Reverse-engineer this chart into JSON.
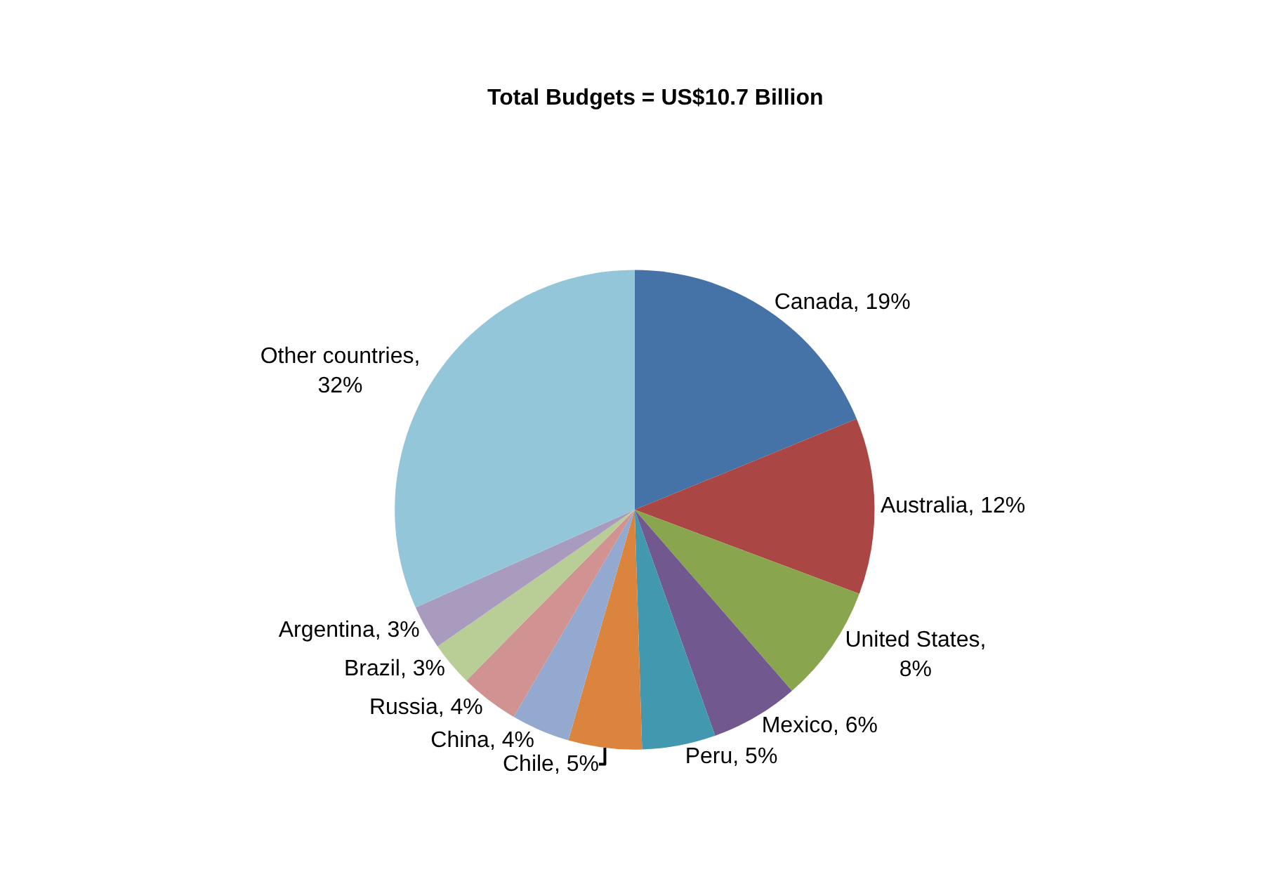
{
  "chart_data": {
    "type": "pie",
    "title": "Total Budgets = US$10.7 Billion",
    "categories": [
      "Canada",
      "Australia",
      "United States",
      "Mexico",
      "Peru",
      "Chile",
      "China",
      "Russia",
      "Brazil",
      "Argentina",
      "Other countries"
    ],
    "values": [
      19,
      12,
      8,
      6,
      5,
      5,
      4,
      4,
      3,
      3,
      32
    ],
    "value_labels": [
      ", 19%",
      ", 12%",
      ",\n8%",
      ", 6%",
      ", 5%",
      ", 5%",
      ", 4%",
      ", 4%",
      ", 3%",
      ", 3%",
      ",\n32%"
    ],
    "colors": [
      "#4572a7",
      "#aa4643",
      "#89a54e",
      "#71588f",
      "#4198af",
      "#db843d",
      "#93a9cf",
      "#d19392",
      "#b9cd96",
      "#a99bbd",
      "#94c6da"
    ],
    "legend": false
  }
}
